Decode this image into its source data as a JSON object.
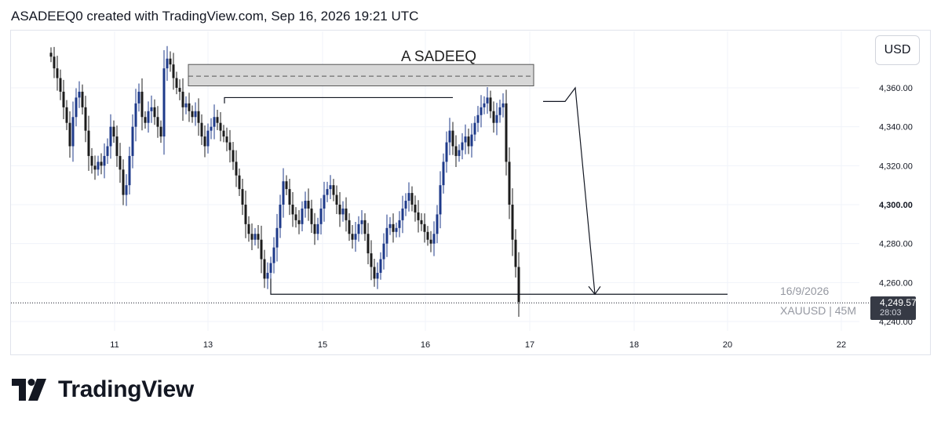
{
  "header": {
    "caption": "ASADEEQ0 created with TradingView.com, Sep 16, 2026 19:21 UTC"
  },
  "toolbar": {
    "currency_label": "USD"
  },
  "last_price": {
    "value": "4,249.57",
    "countdown": "28:03"
  },
  "brand": {
    "name": "TradingView",
    "logo_icon": "tradingview-logo-icon"
  },
  "colors": {
    "bull": "#1e3a8a",
    "bear": "#1c1c1c",
    "zone": "#d7d7d7",
    "grid": "#f0f3fa"
  },
  "chart_data": {
    "type": "candlestick",
    "symbol_label": "XAUUSD | 45M",
    "date_label": "16/9/2026",
    "annotation_text": "A SADEEQ",
    "ylim": [
      4232,
      4378
    ],
    "y_ticks": [
      {
        "label": "4,360.00",
        "value": 4360,
        "bold": false
      },
      {
        "label": "4,340.00",
        "value": 4340,
        "bold": false
      },
      {
        "label": "4,320.00",
        "value": 4320,
        "bold": false
      },
      {
        "label": "4,300.00",
        "value": 4300,
        "bold": true
      },
      {
        "label": "4,280.00",
        "value": 4280,
        "bold": false
      },
      {
        "label": "4,260.00",
        "value": 4260,
        "bold": false
      },
      {
        "label": "4,240.00",
        "value": 4240,
        "bold": false
      }
    ],
    "x_ticks": [
      "11",
      "13",
      "15",
      "16",
      "17",
      "18",
      "20",
      "22"
    ],
    "close_series": [
      4376,
      4370,
      4365,
      4358,
      4350,
      4342,
      4330,
      4345,
      4355,
      4358,
      4350,
      4338,
      4325,
      4320,
      4318,
      4322,
      4320,
      4325,
      4330,
      4340,
      4335,
      4325,
      4318,
      4305,
      4310,
      4325,
      4340,
      4352,
      4358,
      4345,
      4342,
      4348,
      4350,
      4345,
      4340,
      4335,
      4370,
      4375,
      4372,
      4365,
      4360,
      4358,
      4350,
      4352,
      4348,
      4345,
      4348,
      4342,
      4335,
      4330,
      4338,
      4340,
      4345,
      4342,
      4338,
      4335,
      4332,
      4328,
      4322,
      4315,
      4308,
      4300,
      4290,
      4285,
      4282,
      4285,
      4282,
      4272,
      4262,
      4265,
      4270,
      4278,
      4288,
      4300,
      4312,
      4308,
      4300,
      4295,
      4292,
      4290,
      4298,
      4302,
      4298,
      4290,
      4285,
      4290,
      4298,
      4305,
      4308,
      4310,
      4305,
      4300,
      4295,
      4298,
      4292,
      4285,
      4282,
      4285,
      4290,
      4292,
      4285,
      4275,
      4268,
      4262,
      4265,
      4272,
      4280,
      4288,
      4290,
      4286,
      4288,
      4292,
      4298,
      4302,
      4306,
      4300,
      4296,
      4292,
      4290,
      4286,
      4282,
      4280,
      4285,
      4295,
      4310,
      4322,
      4332,
      4338,
      4330,
      4325,
      4328,
      4332,
      4335,
      4330,
      4336,
      4342,
      4346,
      4350,
      4352,
      4355,
      4348,
      4342,
      4346,
      4350,
      4352,
      4322,
      4300,
      4282,
      4268,
      4250
    ],
    "zone": {
      "top": 4372,
      "bottom": 4361,
      "mid": 4366
    },
    "previous_high_level": 4355,
    "previous_low_level": 4254,
    "last_price_level": 4249.57
  }
}
